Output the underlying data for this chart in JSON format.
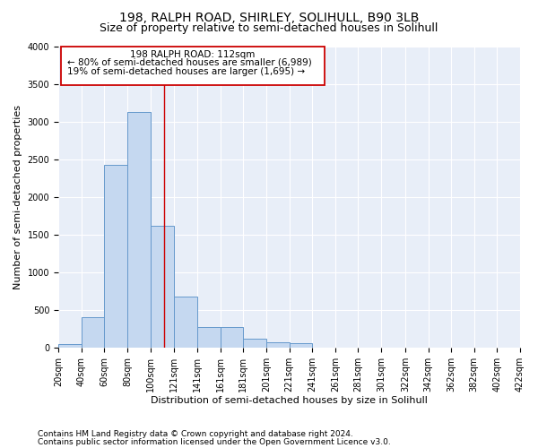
{
  "title": "198, RALPH ROAD, SHIRLEY, SOLIHULL, B90 3LB",
  "subtitle": "Size of property relative to semi-detached houses in Solihull",
  "xlabel": "Distribution of semi-detached houses by size in Solihull",
  "ylabel": "Number of semi-detached properties",
  "footnote1": "Contains HM Land Registry data © Crown copyright and database right 2024.",
  "footnote2": "Contains public sector information licensed under the Open Government Licence v3.0.",
  "bar_edges": [
    20,
    40,
    60,
    80,
    100,
    121,
    141,
    161,
    181,
    201,
    221,
    241,
    261,
    281,
    301,
    322,
    342,
    362,
    382,
    402,
    422
  ],
  "bar_heights": [
    50,
    400,
    2430,
    3130,
    1610,
    680,
    270,
    270,
    115,
    70,
    60,
    0,
    0,
    0,
    0,
    0,
    0,
    0,
    0,
    0
  ],
  "bar_color": "#c5d8f0",
  "bar_edge_color": "#6699cc",
  "property_size": 112,
  "property_label": "198 RALPH ROAD: 112sqm",
  "pct_smaller": 80,
  "n_smaller": 6989,
  "pct_larger": 19,
  "n_larger": 1695,
  "vline_color": "#cc0000",
  "annotation_box_color": "#cc0000",
  "ylim": [
    0,
    4000
  ],
  "yticks": [
    0,
    500,
    1000,
    1500,
    2000,
    2500,
    3000,
    3500,
    4000
  ],
  "background_color": "#e8eef8",
  "grid_color": "#ffffff",
  "title_fontsize": 10,
  "subtitle_fontsize": 9,
  "axis_label_fontsize": 8,
  "tick_fontsize": 7,
  "footnote_fontsize": 6.5
}
